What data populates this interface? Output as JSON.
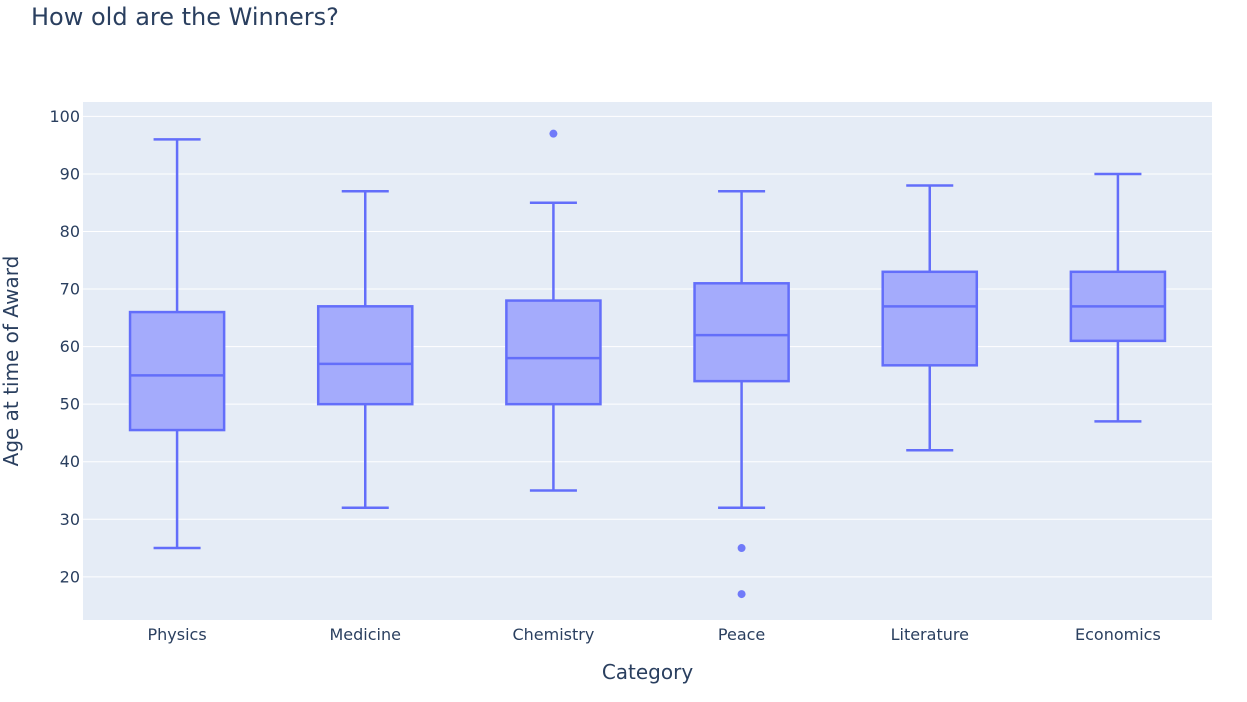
{
  "chart_data": {
    "type": "box",
    "title": "How old are the Winners?",
    "xlabel": "Category",
    "ylabel": "Age at time of Award",
    "ylim": [
      12.5,
      102.5
    ],
    "yticks": [
      20,
      30,
      40,
      50,
      60,
      70,
      80,
      90,
      100
    ],
    "grid": true,
    "legend": "none",
    "colors": {
      "line": "#636efa",
      "fill": "#a4abfc",
      "plot_bg": "#e5ecf6",
      "grid": "#ffffff",
      "text": "#2a3f5f"
    },
    "categories": [
      "Physics",
      "Medicine",
      "Chemistry",
      "Peace",
      "Literature",
      "Economics"
    ],
    "boxes": [
      {
        "min": 25,
        "q1": 45.5,
        "median": 55,
        "q3": 66,
        "max": 96,
        "outliers": []
      },
      {
        "min": 32,
        "q1": 50,
        "median": 57,
        "q3": 67,
        "max": 87,
        "outliers": []
      },
      {
        "min": 35,
        "q1": 50,
        "median": 58,
        "q3": 68,
        "max": 85,
        "outliers": [
          97
        ]
      },
      {
        "min": 32,
        "q1": 54,
        "median": 62,
        "q3": 71,
        "max": 87,
        "outliers": [
          25,
          17
        ]
      },
      {
        "min": 42,
        "q1": 56.75,
        "median": 67,
        "q3": 73,
        "max": 88,
        "outliers": []
      },
      {
        "min": 47,
        "q1": 61,
        "median": 67,
        "q3": 73,
        "max": 90,
        "outliers": []
      }
    ]
  }
}
